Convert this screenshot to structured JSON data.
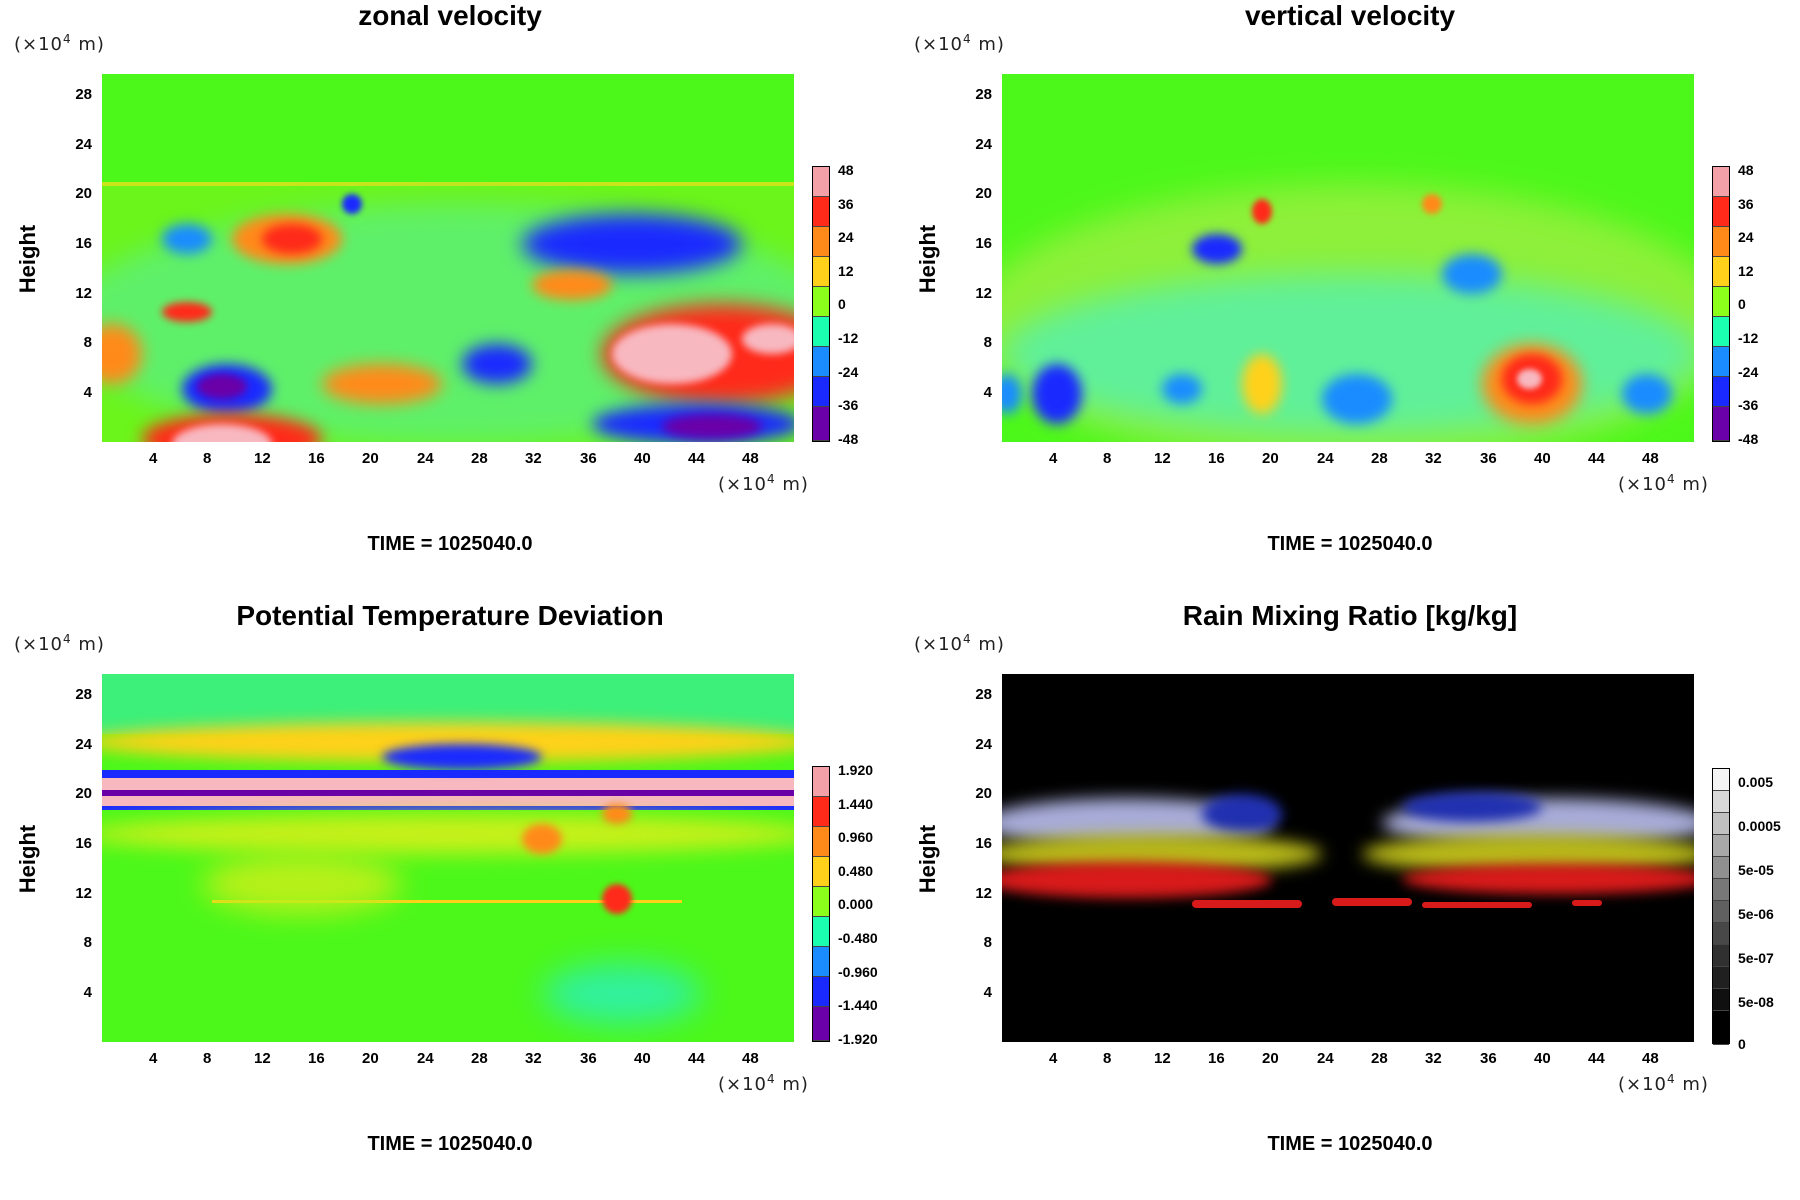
{
  "panels": [
    {
      "title": "zonal velocity",
      "ylabel": "Height",
      "axis_unit_prefix": "(×10",
      "axis_unit_exp": "4",
      "axis_unit_suffix": " m)",
      "time": "TIME = 1025040.0",
      "colorbar_labels": [
        "48",
        "36",
        "24",
        "12",
        "0",
        "-12",
        "-24",
        "-36",
        "-48"
      ],
      "colorbar_colors": [
        "#f4a0a8",
        "#ff2a1a",
        "#ff8a1a",
        "#ffd11a",
        "#8cff1a",
        "#1affb0",
        "#1a8cff",
        "#1a2aff",
        "#6a00a8"
      ]
    },
    {
      "title": "vertical velocity",
      "ylabel": "Height",
      "axis_unit_prefix": "(×10",
      "axis_unit_exp": "4",
      "axis_unit_suffix": " m)",
      "time": "TIME = 1025040.0",
      "colorbar_labels": [
        "48",
        "36",
        "24",
        "12",
        "0",
        "-12",
        "-24",
        "-36",
        "-48"
      ],
      "colorbar_colors": [
        "#f4a0a8",
        "#ff2a1a",
        "#ff8a1a",
        "#ffd11a",
        "#8cff1a",
        "#1affb0",
        "#1a8cff",
        "#1a2aff",
        "#6a00a8"
      ]
    },
    {
      "title": "Potential Temperature Deviation",
      "ylabel": "Height",
      "axis_unit_prefix": "(×10",
      "axis_unit_exp": "4",
      "axis_unit_suffix": " m)",
      "time": "TIME = 1025040.0",
      "colorbar_labels": [
        "1.920",
        "1.440",
        "0.960",
        "0.480",
        "0.000",
        "-0.480",
        "-0.960",
        "-1.440",
        "-1.920"
      ],
      "colorbar_colors": [
        "#f4a0a8",
        "#ff2a1a",
        "#ff8a1a",
        "#ffd11a",
        "#8cff1a",
        "#1affb0",
        "#1a8cff",
        "#1a2aff",
        "#6a00a8"
      ]
    },
    {
      "title": "Rain Mixing Ratio [kg/kg]",
      "ylabel": "Height",
      "axis_unit_prefix": "(×10",
      "axis_unit_exp": "4",
      "axis_unit_suffix": " m)",
      "time": "TIME = 1025040.0",
      "colorbar_labels": [
        "0.005",
        "0.0005",
        "5e-05",
        "5e-06",
        "5e-07",
        "5e-08",
        "0"
      ],
      "colorbar_colors": [
        "#f0f0f0",
        "#c8c8c8",
        "#a0a0a0",
        "#787878",
        "#505050",
        "#303030",
        "#000000"
      ]
    }
  ],
  "chart_data": [
    {
      "type": "heatmap",
      "title": "zonal velocity",
      "ylabel": "Height",
      "x_ticks": [
        4,
        8,
        12,
        16,
        20,
        24,
        28,
        32,
        36,
        40,
        44,
        48
      ],
      "y_ticks": [
        4,
        8,
        12,
        16,
        20,
        24,
        28
      ],
      "x_unit": "(×10^4 m)",
      "y_unit": "(×10^4 m)",
      "colorbar": [
        48,
        36,
        24,
        12,
        0,
        -12,
        -24,
        -36,
        -48
      ]
    },
    {
      "type": "heatmap",
      "title": "vertical velocity",
      "ylabel": "Height",
      "x_ticks": [
        4,
        8,
        12,
        16,
        20,
        24,
        28,
        32,
        36,
        40,
        44,
        48
      ],
      "y_ticks": [
        4,
        8,
        12,
        16,
        20,
        24,
        28
      ],
      "x_unit": "(×10^4 m)",
      "y_unit": "(×10^4 m)",
      "colorbar": [
        48,
        36,
        24,
        12,
        0,
        -12,
        -24,
        -36,
        -48
      ]
    },
    {
      "type": "heatmap",
      "title": "Potential Temperature Deviation",
      "ylabel": "Height",
      "x_ticks": [
        4,
        8,
        12,
        16,
        20,
        24,
        28,
        32,
        36,
        40,
        44,
        48
      ],
      "y_ticks": [
        4,
        8,
        12,
        16,
        20,
        24,
        28
      ],
      "x_unit": "(×10^4 m)",
      "y_unit": "(×10^4 m)",
      "colorbar": [
        1.92,
        1.44,
        0.96,
        0.48,
        0.0,
        -0.48,
        -0.96,
        -1.44,
        -1.92
      ]
    },
    {
      "type": "heatmap",
      "title": "Rain Mixing Ratio [kg/kg]",
      "ylabel": "Height",
      "x_ticks": [
        4,
        8,
        12,
        16,
        20,
        24,
        28,
        32,
        36,
        40,
        44,
        48
      ],
      "y_ticks": [
        4,
        8,
        12,
        16,
        20,
        24,
        28
      ],
      "x_unit": "(×10^4 m)",
      "y_unit": "(×10^4 m)",
      "colorbar": [
        "0.005",
        "0.0005",
        "5e-05",
        "5e-06",
        "5e-07",
        "5e-08",
        "0"
      ]
    }
  ]
}
